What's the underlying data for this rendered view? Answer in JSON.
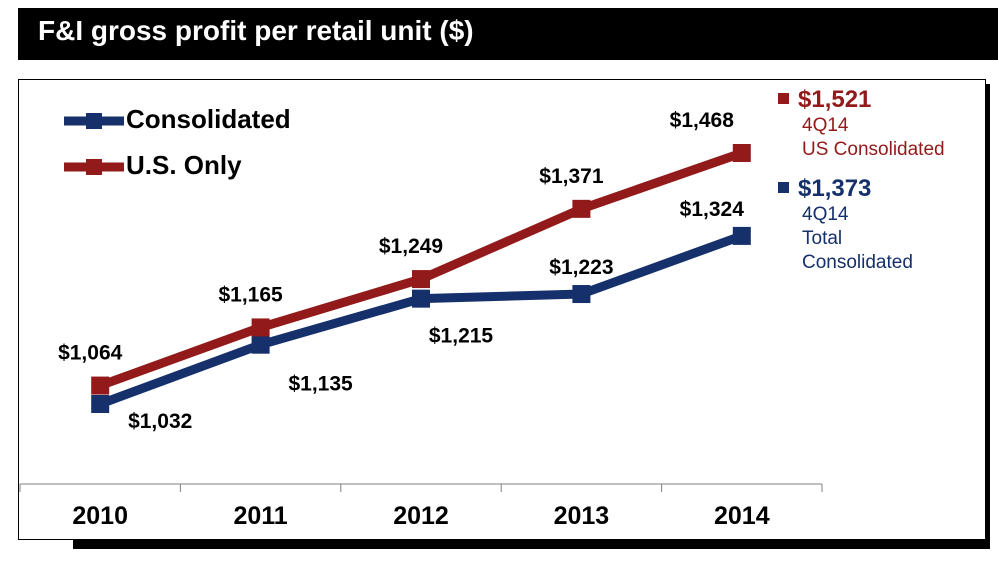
{
  "header": {
    "title": "F&I gross profit per retail unit ($)"
  },
  "colors": {
    "consolidated": "#16306b",
    "us_only": "#931a1a",
    "title_bg": "#000000"
  },
  "legend": [
    {
      "label": "Consolidated",
      "color": "#16306b"
    },
    {
      "label": "U.S. Only",
      "color": "#931a1a"
    }
  ],
  "side_panel": {
    "us": {
      "value": "$1,521",
      "period": "4Q14",
      "desc": "US Consolidated",
      "color": "#931a1a"
    },
    "total": {
      "value": "$1,373",
      "period": "4Q14",
      "desc_line1": "Total",
      "desc_line2": "Consolidated",
      "color": "#16306b"
    }
  },
  "chart_data": {
    "type": "line",
    "title": "F&I gross profit per retail unit ($)",
    "categories": [
      "2010",
      "2011",
      "2012",
      "2013",
      "2014"
    ],
    "series": [
      {
        "name": "Consolidated",
        "values": [
          1032,
          1135,
          1215,
          1223,
          1324
        ],
        "labels": [
          "$1,032",
          "$1,135",
          "$1,215",
          "$1,223",
          "$1,324"
        ],
        "color": "#16306b"
      },
      {
        "name": "U.S. Only",
        "values": [
          1064,
          1165,
          1249,
          1371,
          1468
        ],
        "labels": [
          "$1,064",
          "$1,165",
          "$1,249",
          "$1,371",
          "$1,468"
        ],
        "color": "#931a1a"
      }
    ],
    "legend_position": "top-left",
    "grid": false
  }
}
